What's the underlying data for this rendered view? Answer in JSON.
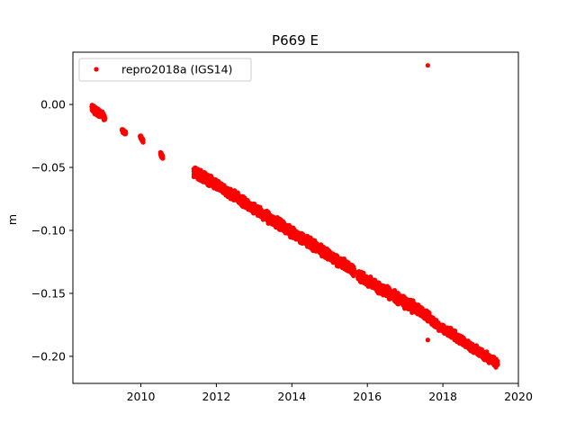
{
  "chart_data": {
    "type": "scatter",
    "title": "P669 E",
    "xlabel": "",
    "ylabel": "m",
    "xlim": [
      2008.2,
      2020.0
    ],
    "ylim": [
      -0.2215,
      0.0415
    ],
    "xticks": [
      2010,
      2012,
      2014,
      2016,
      2018,
      2020
    ],
    "xtick_labels": [
      "2010",
      "2012",
      "2014",
      "2016",
      "2018",
      "2020"
    ],
    "yticks": [
      0.0,
      -0.05,
      -0.1,
      -0.15,
      -0.2
    ],
    "ytick_labels": [
      "0.00",
      "−0.05",
      "−0.10",
      "−0.15",
      "−0.20"
    ],
    "grid": false,
    "legend_position": "upper-left",
    "series": [
      {
        "name": "repro2018a (IGS14)",
        "color": "#ff0000",
        "marker": "dot",
        "segments": [
          {
            "x_start": 2008.7,
            "x_end": 2008.95,
            "y_start": -0.003,
            "y_end": -0.008,
            "spread": 0.004
          },
          {
            "x_start": 2008.95,
            "x_end": 2009.05,
            "y_start": -0.007,
            "y_end": -0.011,
            "spread": 0.003
          },
          {
            "x_start": 2009.5,
            "x_end": 2009.6,
            "y_start": -0.02,
            "y_end": -0.023,
            "spread": 0.002
          },
          {
            "x_start": 2009.98,
            "x_end": 2010.06,
            "y_start": -0.025,
            "y_end": -0.029,
            "spread": 0.002
          },
          {
            "x_start": 2010.52,
            "x_end": 2010.58,
            "y_start": -0.039,
            "y_end": -0.042,
            "spread": 0.002
          },
          {
            "x_start": 2011.4,
            "x_end": 2015.65,
            "y_start": -0.053,
            "y_end": -0.132,
            "spread": 0.0055
          },
          {
            "x_start": 2015.75,
            "x_end": 2017.35,
            "y_start": -0.136,
            "y_end": -0.163,
            "spread": 0.0055
          },
          {
            "x_start": 2017.35,
            "x_end": 2017.75,
            "y_start": -0.163,
            "y_end": -0.172,
            "spread": 0.005
          },
          {
            "x_start": 2017.75,
            "x_end": 2019.45,
            "y_start": -0.173,
            "y_end": -0.206,
            "spread": 0.0045
          }
        ],
        "points": [
          {
            "x": 2017.6,
            "y": 0.031
          },
          {
            "x": 2017.1,
            "y": -0.157
          },
          {
            "x": 2017.6,
            "y": -0.187
          }
        ]
      }
    ]
  }
}
